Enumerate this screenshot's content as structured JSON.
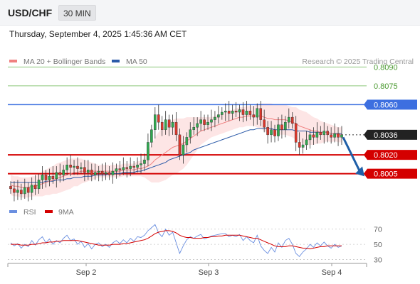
{
  "header": {
    "symbol": "USD/CHF",
    "timeframe": "30 MIN"
  },
  "timestamp": "Thursday, September 4, 2025 1:45:36 AM CET",
  "colors": {
    "price_up": "#2fa84f",
    "price_down": "#d9372b",
    "ma20": "#f08080",
    "bollinger_fill": "#fde2e2",
    "ma50": "#2b5aa8",
    "resistance": "#8cc77a",
    "current_level": "#3d6fe0",
    "support": "#d40000",
    "rsi": "#6a8fe0",
    "rsi_ma": "#d40000",
    "arrow": "#1f5fa8"
  },
  "chart_data": [
    {
      "type": "candlestick",
      "title": "",
      "legend": [
        {
          "name": "MA 20 + Bollinger Bands",
          "color": "#f08080"
        },
        {
          "name": "MA 50",
          "color": "#2b5aa8"
        }
      ],
      "legend_position": "top-left",
      "watermark": "Research © 2025 Trading Central",
      "x_ticks": [
        "Sep 2",
        "Sep 3",
        "Sep 4"
      ],
      "ylim": [
        0.7985,
        0.8097
      ],
      "levels": [
        {
          "value": 0.809,
          "label": "0.8090",
          "kind": "resistance"
        },
        {
          "value": 0.8075,
          "label": "0.8075",
          "kind": "resistance"
        },
        {
          "value": 0.806,
          "label": "0.8060",
          "kind": "current_level"
        },
        {
          "value": 0.8036,
          "label": "0.8036",
          "kind": "last_price"
        },
        {
          "value": 0.802,
          "label": "0.8020",
          "kind": "support"
        },
        {
          "value": 0.8005,
          "label": "0.8005",
          "kind": "support"
        }
      ],
      "projection": {
        "from": 0.8034,
        "to": 0.8004,
        "direction": "down"
      },
      "close_series": [
        0.7993,
        0.799,
        0.7992,
        0.7989,
        0.7994,
        0.799,
        0.7996,
        0.7993,
        0.8,
        0.8004,
        0.8,
        0.8003,
        0.8001,
        0.8006,
        0.8004,
        0.8008,
        0.8012,
        0.801,
        0.8011,
        0.8009,
        0.801,
        0.8006,
        0.8008,
        0.8004,
        0.8006,
        0.8007,
        0.8005,
        0.8006,
        0.8004,
        0.8007,
        0.8009,
        0.8008,
        0.801,
        0.8009,
        0.8011,
        0.801,
        0.8012,
        0.8013,
        0.8016,
        0.803,
        0.804,
        0.8052,
        0.8046,
        0.804,
        0.8048,
        0.8042,
        0.8046,
        0.8036,
        0.802,
        0.8028,
        0.8034,
        0.804,
        0.8042,
        0.8045,
        0.8048,
        0.8044,
        0.8046,
        0.8048,
        0.805,
        0.8052,
        0.8054,
        0.8055,
        0.8053,
        0.8055,
        0.8054,
        0.8056,
        0.8052,
        0.8055,
        0.8052,
        0.805,
        0.8057,
        0.8048,
        0.8042,
        0.8036,
        0.804,
        0.8035,
        0.8044,
        0.804,
        0.8046,
        0.805,
        0.8045,
        0.803,
        0.8026,
        0.8028,
        0.8032,
        0.8036,
        0.8034,
        0.8038,
        0.8036,
        0.8039,
        0.8036,
        0.8034,
        0.8037,
        0.8034,
        0.8036
      ],
      "ma20": [
        0.7996,
        0.7995,
        0.7995,
        0.7994,
        0.7994,
        0.7994,
        0.7995,
        0.7995,
        0.7996,
        0.7997,
        0.7998,
        0.7999,
        0.8,
        0.8001,
        0.8002,
        0.8003,
        0.8004,
        0.8005,
        0.8006,
        0.8006,
        0.8007,
        0.8007,
        0.8007,
        0.8007,
        0.8007,
        0.8007,
        0.8007,
        0.8007,
        0.8007,
        0.8007,
        0.8007,
        0.8007,
        0.8008,
        0.8008,
        0.8008,
        0.8008,
        0.8009,
        0.8009,
        0.801,
        0.8011,
        0.8013,
        0.8016,
        0.8018,
        0.802,
        0.8022,
        0.8024,
        0.8026,
        0.8027,
        0.8028,
        0.8029,
        0.8031,
        0.8033,
        0.8035,
        0.8037,
        0.8039,
        0.804,
        0.8041,
        0.8042,
        0.8043,
        0.8044,
        0.8045,
        0.8046,
        0.8047,
        0.8048,
        0.8049,
        0.805,
        0.805,
        0.8051,
        0.8051,
        0.8051,
        0.8051,
        0.8051,
        0.805,
        0.8049,
        0.8049,
        0.8048,
        0.8048,
        0.8048,
        0.8048,
        0.8047,
        0.8046,
        0.8045,
        0.8043,
        0.8042,
        0.8041,
        0.804,
        0.8039,
        0.8039,
        0.8038,
        0.8038,
        0.8038,
        0.8037,
        0.8037,
        0.8036,
        0.8036
      ],
      "bb_width": [
        0.0008,
        0.0008,
        0.0008,
        0.0008,
        0.0008,
        0.0008,
        0.0008,
        0.0008,
        0.0009,
        0.001,
        0.001,
        0.0011,
        0.0011,
        0.0012,
        0.0012,
        0.0012,
        0.0012,
        0.0012,
        0.0011,
        0.0011,
        0.001,
        0.0009,
        0.0008,
        0.0007,
        0.0006,
        0.0005,
        0.0005,
        0.0005,
        0.0005,
        0.0005,
        0.0005,
        0.0005,
        0.0005,
        0.0005,
        0.0005,
        0.0005,
        0.0006,
        0.0006,
        0.0008,
        0.0011,
        0.0015,
        0.0018,
        0.002,
        0.0021,
        0.0022,
        0.0022,
        0.0022,
        0.0022,
        0.0021,
        0.002,
        0.0019,
        0.0017,
        0.0015,
        0.0013,
        0.0011,
        0.001,
        0.0009,
        0.0008,
        0.0008,
        0.0008,
        0.0008,
        0.0008,
        0.0008,
        0.0008,
        0.0008,
        0.0008,
        0.0008,
        0.0008,
        0.0008,
        0.0008,
        0.0009,
        0.001,
        0.0011,
        0.0012,
        0.0012,
        0.0012,
        0.0012,
        0.0012,
        0.0012,
        0.0012,
        0.0012,
        0.0013,
        0.0013,
        0.0013,
        0.0013,
        0.0012,
        0.0011,
        0.001,
        0.0009,
        0.0008,
        0.0007,
        0.0007,
        0.0006,
        0.0006,
        0.0006
      ],
      "ma50": [
        0.7998,
        0.7998,
        0.7998,
        0.7998,
        0.7998,
        0.7998,
        0.7998,
        0.7998,
        0.7998,
        0.7998,
        0.7999,
        0.7999,
        0.7999,
        0.8,
        0.8,
        0.8,
        0.8001,
        0.8001,
        0.8002,
        0.8002,
        0.8002,
        0.8003,
        0.8003,
        0.8003,
        0.8004,
        0.8004,
        0.8004,
        0.8004,
        0.8005,
        0.8005,
        0.8005,
        0.8005,
        0.8006,
        0.8006,
        0.8006,
        0.8006,
        0.8007,
        0.8007,
        0.8008,
        0.8009,
        0.801,
        0.8011,
        0.8012,
        0.8013,
        0.8014,
        0.8016,
        0.8017,
        0.8018,
        0.8019,
        0.802,
        0.8021,
        0.8022,
        0.8024,
        0.8025,
        0.8026,
        0.8027,
        0.8028,
        0.8029,
        0.803,
        0.8031,
        0.8032,
        0.8033,
        0.8034,
        0.8035,
        0.8036,
        0.8037,
        0.8038,
        0.8039,
        0.804,
        0.804,
        0.8041,
        0.8041,
        0.8041,
        0.8041,
        0.8041,
        0.804,
        0.804,
        0.804,
        0.804,
        0.804,
        0.804,
        0.8039,
        0.8039,
        0.8039,
        0.8039,
        0.8038,
        0.8038,
        0.8038,
        0.8038,
        0.8038,
        0.8038,
        0.8037,
        0.8037,
        0.8037,
        0.8037
      ]
    },
    {
      "type": "line",
      "title": "",
      "legend": [
        {
          "name": "RSI",
          "color": "#6a8fe0"
        },
        {
          "name": "9MA",
          "color": "#d40000"
        }
      ],
      "legend_position": "top-left",
      "ylim": [
        24,
        80
      ],
      "y_ticks": [
        "70",
        "50",
        "30"
      ],
      "y_tick_values": [
        70,
        50,
        30
      ],
      "x_ticks": [
        "Sep 2",
        "Sep 3",
        "Sep 4"
      ],
      "series": [
        {
          "name": "RSI",
          "values": [
            52,
            48,
            51,
            45,
            50,
            47,
            55,
            49,
            56,
            60,
            52,
            57,
            50,
            55,
            52,
            58,
            62,
            55,
            57,
            50,
            54,
            46,
            51,
            44,
            50,
            52,
            47,
            50,
            46,
            52,
            55,
            51,
            56,
            52,
            58,
            54,
            60,
            59,
            62,
            68,
            72,
            76,
            65,
            60,
            70,
            62,
            66,
            52,
            38,
            48,
            56,
            60,
            58,
            61,
            63,
            57,
            59,
            61,
            62,
            63,
            64,
            64,
            60,
            62,
            60,
            63,
            55,
            60,
            55,
            52,
            62,
            48,
            42,
            38,
            46,
            40,
            52,
            46,
            55,
            58,
            50,
            38,
            34,
            40,
            44,
            50,
            46,
            52,
            48,
            53,
            48,
            45,
            50,
            46,
            48
          ]
        },
        {
          "name": "9MA",
          "values": [
            50,
            50,
            50,
            49,
            49,
            49,
            50,
            50,
            51,
            52,
            52,
            53,
            53,
            54,
            54,
            55,
            55,
            55,
            55,
            55,
            54,
            53,
            52,
            51,
            50,
            49,
            49,
            49,
            49,
            50,
            50,
            50,
            51,
            51,
            52,
            53,
            54,
            55,
            56,
            58,
            61,
            64,
            66,
            67,
            68,
            68,
            67,
            65,
            62,
            60,
            59,
            59,
            58,
            58,
            58,
            59,
            59,
            60,
            60,
            61,
            61,
            62,
            62,
            62,
            62,
            62,
            61,
            60,
            59,
            58,
            58,
            56,
            54,
            52,
            50,
            48,
            47,
            47,
            47,
            48,
            48,
            47,
            46,
            45,
            45,
            44,
            45,
            46,
            47,
            47,
            48,
            48,
            48,
            48,
            48
          ]
        }
      ]
    }
  ]
}
